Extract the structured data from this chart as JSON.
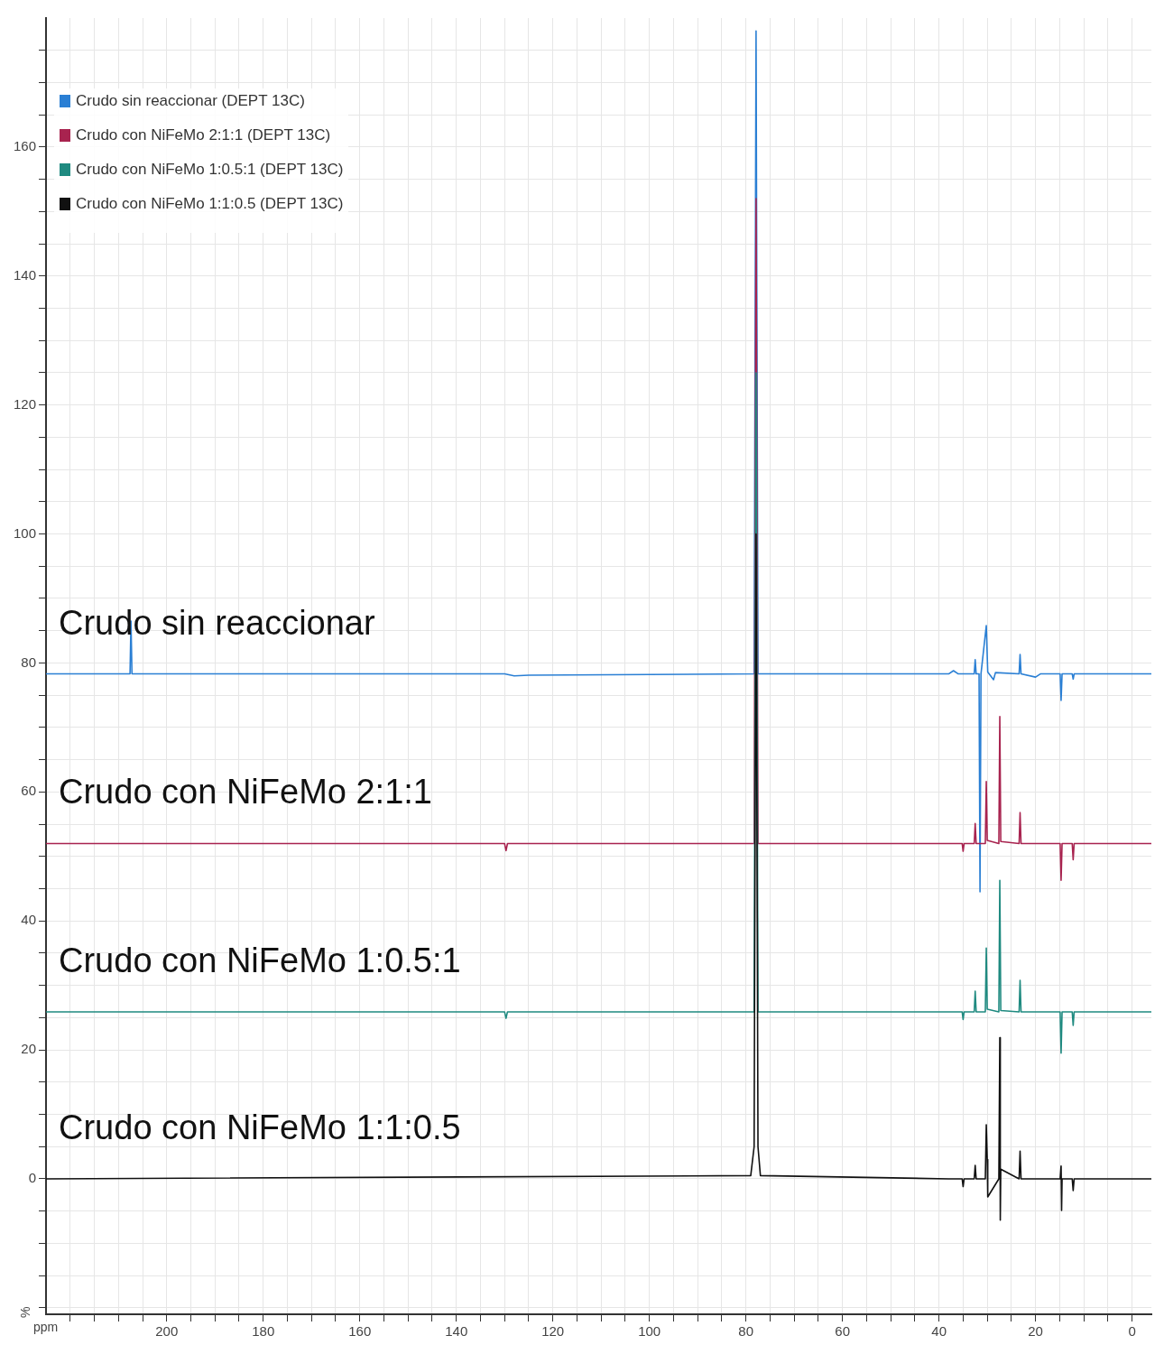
{
  "chart_data": {
    "type": "line",
    "xlabel": "ppm",
    "ylabel": "%",
    "xlim": [
      225,
      -4
    ],
    "ylim": [
      -21,
      180
    ],
    "xticks": [
      {
        "value": 220,
        "label": null
      },
      {
        "value": 215,
        "label": null
      },
      {
        "value": 210,
        "label": null
      },
      {
        "value": 205,
        "label": null
      },
      200,
      {
        "value": 195,
        "label": null
      },
      {
        "value": 190,
        "label": null
      },
      {
        "value": 185,
        "label": null
      },
      180,
      {
        "value": 175,
        "label": null
      },
      {
        "value": 170,
        "label": null
      },
      {
        "value": 165,
        "label": null
      },
      160,
      {
        "value": 155,
        "label": null
      },
      {
        "value": 150,
        "label": null
      },
      {
        "value": 145,
        "label": null
      },
      140,
      {
        "value": 135,
        "label": null
      },
      {
        "value": 130,
        "label": null
      },
      {
        "value": 125,
        "label": null
      },
      120,
      {
        "value": 115,
        "label": null
      },
      {
        "value": 110,
        "label": null
      },
      {
        "value": 105,
        "label": null
      },
      100,
      {
        "value": 95,
        "label": null
      },
      {
        "value": 90,
        "label": null
      },
      {
        "value": 85,
        "label": null
      },
      80,
      {
        "value": 75,
        "label": null
      },
      {
        "value": 70,
        "label": null
      },
      {
        "value": 65,
        "label": null
      },
      60,
      {
        "value": 55,
        "label": null
      },
      {
        "value": 50,
        "label": null
      },
      {
        "value": 45,
        "label": null
      },
      40,
      {
        "value": 35,
        "label": null
      },
      {
        "value": 30,
        "label": null
      },
      {
        "value": 25,
        "label": null
      },
      20,
      {
        "value": 15,
        "label": null
      },
      {
        "value": 10,
        "label": null
      },
      {
        "value": 5,
        "label": null
      },
      0
    ],
    "yticks": [
      {
        "value": -20,
        "label": null
      },
      {
        "value": -15,
        "label": null
      },
      {
        "value": -10,
        "label": null
      },
      {
        "value": -5,
        "label": null
      },
      0,
      {
        "value": 5,
        "label": null
      },
      {
        "value": 10,
        "label": null
      },
      {
        "value": 15,
        "label": null
      },
      20,
      {
        "value": 25,
        "label": null
      },
      {
        "value": 30,
        "label": null
      },
      {
        "value": 35,
        "label": null
      },
      40,
      {
        "value": 45,
        "label": null
      },
      {
        "value": 50,
        "label": null
      },
      {
        "value": 55,
        "label": null
      },
      60,
      {
        "value": 65,
        "label": null
      },
      {
        "value": 70,
        "label": null
      },
      {
        "value": 75,
        "label": null
      },
      80,
      {
        "value": 85,
        "label": null
      },
      {
        "value": 90,
        "label": null
      },
      {
        "value": 95,
        "label": null
      },
      100,
      {
        "value": 105,
        "label": null
      },
      {
        "value": 110,
        "label": null
      },
      {
        "value": 115,
        "label": null
      },
      120,
      {
        "value": 125,
        "label": null
      },
      {
        "value": 130,
        "label": null
      },
      {
        "value": 135,
        "label": null
      },
      140,
      {
        "value": 145,
        "label": null
      },
      {
        "value": 150,
        "label": null
      },
      {
        "value": 155,
        "label": null
      },
      160,
      {
        "value": 165,
        "label": null
      },
      {
        "value": 170,
        "label": null
      },
      {
        "value": 175,
        "label": null
      }
    ],
    "grid": true,
    "legend": "top left",
    "marker": "none",
    "line_style": "solid",
    "series": [
      {
        "name": "Crudo sin reaccionar (DEPT 13C)",
        "color": "#2a7fd4",
        "x": [
          225,
          207.6,
          207.4,
          207.2,
          130,
          128,
          125,
          78.3,
          77.9,
          77.5,
          38,
          37,
          36,
          32.7,
          32.5,
          32.3,
          31.7,
          31.5,
          31.3,
          30.2,
          29.9,
          28.7,
          28.3,
          23.4,
          23.2,
          23,
          20,
          19,
          14.9,
          14.7,
          14.5,
          12.4,
          12.2,
          12,
          -4
        ],
        "values": [
          78.3,
          78.3,
          86.5,
          78.3,
          78.3,
          78,
          78.1,
          78.3,
          178,
          78.3,
          78.3,
          78.8,
          78.3,
          78.3,
          80.5,
          78.3,
          78.3,
          44.5,
          78.3,
          85.8,
          78.6,
          77.4,
          78.5,
          78.3,
          81.3,
          78.3,
          77.8,
          78.3,
          78.3,
          74.2,
          78.3,
          78.3,
          77.5,
          78.3,
          78.3
        ]
      },
      {
        "name": "Crudo con NiFeMo 2:1:1 (DEPT 13C)",
        "color": "#a8234f",
        "x": [
          225,
          130,
          129.7,
          129.4,
          128,
          78.3,
          77.9,
          77.5,
          38,
          35.2,
          35,
          34.8,
          32.7,
          32.5,
          32.3,
          30.4,
          30.2,
          30,
          27.6,
          27.4,
          27.2,
          23.4,
          23.2,
          23,
          20,
          14.9,
          14.7,
          14.5,
          12.4,
          12.2,
          12,
          -4
        ],
        "values": [
          52,
          52,
          50.9,
          52,
          52,
          52,
          152,
          52,
          52,
          52,
          50.8,
          52,
          52,
          55.1,
          52,
          52,
          61.6,
          52.5,
          52,
          71.7,
          52.3,
          52,
          56.8,
          52,
          52,
          52,
          46.3,
          52,
          52,
          49.5,
          52,
          52
        ]
      },
      {
        "name": "Crudo con NiFeMo 1:0.5:1 (DEPT 13C)",
        "color": "#1f8a80",
        "x": [
          225,
          130,
          129.7,
          129.4,
          128,
          78.3,
          77.9,
          77.5,
          38,
          35.2,
          35,
          34.8,
          32.7,
          32.5,
          32.3,
          30.4,
          30.2,
          30,
          27.6,
          27.4,
          27.2,
          23.4,
          23.2,
          23,
          20,
          14.9,
          14.7,
          14.5,
          12.4,
          12.2,
          12,
          -4
        ],
        "values": [
          25.9,
          25.9,
          24.9,
          25.9,
          25.9,
          25.9,
          125,
          25.9,
          25.9,
          25.9,
          24.7,
          25.9,
          25.9,
          29.1,
          25.9,
          25.9,
          35.8,
          26.3,
          25.9,
          46.3,
          26.1,
          25.9,
          30.8,
          25.9,
          25.9,
          25.9,
          19.5,
          25.9,
          25.9,
          23.8,
          25.9,
          25.9
        ]
      },
      {
        "name": "Crudo con NiFeMo 1:1:0.5 (DEPT 13C)",
        "color": "#111111",
        "x": [
          225,
          79,
          78.3,
          77.9,
          77.5,
          77,
          38,
          35.2,
          35,
          34.8,
          32.7,
          32.5,
          32.3,
          30.4,
          30.2,
          30,
          29.9,
          27.6,
          27.4,
          27.3,
          27.2,
          23.4,
          23.2,
          23,
          20,
          14.9,
          14.7,
          14.6,
          14.5,
          12.4,
          12.2,
          12,
          -4
        ],
        "values": [
          0,
          0.5,
          5,
          100,
          5,
          0.5,
          0,
          0,
          -1.2,
          0,
          0,
          2.1,
          0,
          0,
          8.4,
          3,
          -2.8,
          0,
          21.9,
          -6.4,
          1.5,
          0,
          4.3,
          0,
          0,
          0,
          2,
          -4.9,
          0,
          0,
          -1.8,
          0,
          0
        ]
      }
    ],
    "annotations": [
      "Crudo sin reaccionar",
      "Crudo con NiFeMo 2:1:1",
      "Crudo con NiFeMo 1:0.5:1",
      "Crudo con NiFeMo 1:1:0.5"
    ]
  }
}
